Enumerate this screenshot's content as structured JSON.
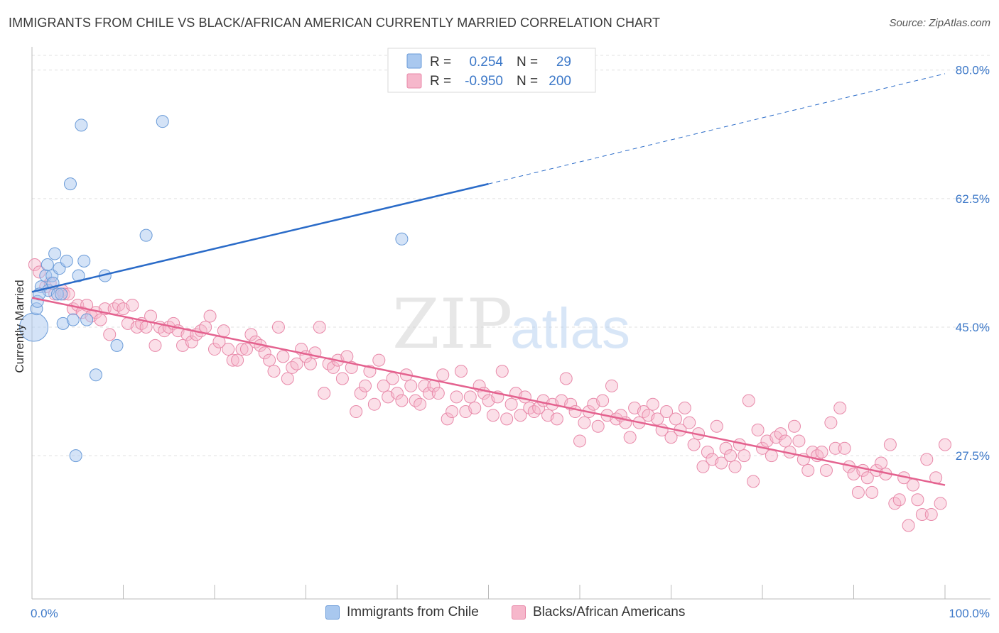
{
  "header": {
    "title": "IMMIGRANTS FROM CHILE VS BLACK/AFRICAN AMERICAN CURRENTLY MARRIED CORRELATION CHART",
    "source": "Source: ZipAtlas.com"
  },
  "watermark": {
    "zip": "ZIP",
    "atlas": "atlas"
  },
  "stats_legend": [
    {
      "r_label": "R =",
      "r_value": "0.254",
      "n_label": "N =",
      "n_value": "29"
    },
    {
      "r_label": "R =",
      "r_value": "-0.950",
      "n_label": "N =",
      "n_value": "200"
    }
  ],
  "colors": {
    "blue_fill": "#a9c8ef",
    "blue_stroke": "#6a9bd8",
    "blue_line": "#2a6bc8",
    "pink_fill": "#f6b7cb",
    "pink_stroke": "#e889a9",
    "pink_line": "#e4628f",
    "grid": "#e0e0e0",
    "tick_text": "#3c78c8"
  },
  "chart_data": {
    "type": "scatter",
    "title": "IMMIGRANTS FROM CHILE VS BLACK/AFRICAN AMERICAN CURRENTLY MARRIED CORRELATION CHART",
    "xlabel": "",
    "ylabel": "Currently Married",
    "xlim": [
      0,
      100
    ],
    "ylim": [
      8,
      82
    ],
    "x_tick_labels": [
      "0.0%",
      "100.0%"
    ],
    "y_ticks": [
      27.5,
      45.0,
      62.5,
      80.0
    ],
    "y_tick_labels": [
      "27.5%",
      "45.0%",
      "62.5%",
      "80.0%"
    ],
    "grid": true,
    "legend_position": "bottom-center",
    "series": [
      {
        "name": "Immigrants from Chile",
        "color": "#a9c8ef",
        "points": [
          [
            0.2,
            45.0
          ],
          [
            0.5,
            47.5
          ],
          [
            0.6,
            48.5
          ],
          [
            1.0,
            50.5
          ],
          [
            1.5,
            52.0
          ],
          [
            1.7,
            53.5
          ],
          [
            1.8,
            50.0
          ],
          [
            2.2,
            52.0
          ],
          [
            2.3,
            51.0
          ],
          [
            2.5,
            55.0
          ],
          [
            2.8,
            49.5
          ],
          [
            3.0,
            53.0
          ],
          [
            3.2,
            49.5
          ],
          [
            3.4,
            45.5
          ],
          [
            3.8,
            54.0
          ],
          [
            4.2,
            64.5
          ],
          [
            4.5,
            46.0
          ],
          [
            4.8,
            27.5
          ],
          [
            5.1,
            52.0
          ],
          [
            5.4,
            72.5
          ],
          [
            5.7,
            54.0
          ],
          [
            6.0,
            46.0
          ],
          [
            7.0,
            38.5
          ],
          [
            8.0,
            52.0
          ],
          [
            9.3,
            42.5
          ],
          [
            12.5,
            57.5
          ],
          [
            14.3,
            73.0
          ],
          [
            40.5,
            57.0
          ],
          [
            0.8,
            49.5
          ]
        ],
        "trend": {
          "x": [
            0,
            50
          ],
          "y": [
            49.8,
            64.5
          ],
          "dashed_to": [
            100,
            79.5
          ]
        }
      },
      {
        "name": "Blacks/African Americans",
        "color": "#f6b7cb",
        "points": [
          [
            0.3,
            53.5
          ],
          [
            0.8,
            52.5
          ],
          [
            1.5,
            50.5
          ],
          [
            2.0,
            51.0
          ],
          [
            2.5,
            49.5
          ],
          [
            3.3,
            50.0
          ],
          [
            3.5,
            49.5
          ],
          [
            4.0,
            49.5
          ],
          [
            4.5,
            47.5
          ],
          [
            5.0,
            48.0
          ],
          [
            5.5,
            47.0
          ],
          [
            6.0,
            48.0
          ],
          [
            6.5,
            46.5
          ],
          [
            7.0,
            47.0
          ],
          [
            7.5,
            46.0
          ],
          [
            8.0,
            47.5
          ],
          [
            8.5,
            44.0
          ],
          [
            9.0,
            47.5
          ],
          [
            9.5,
            48.0
          ],
          [
            10.0,
            47.5
          ],
          [
            10.5,
            45.5
          ],
          [
            11.0,
            48.0
          ],
          [
            11.5,
            45.0
          ],
          [
            12.0,
            45.5
          ],
          [
            12.5,
            45.0
          ],
          [
            13.0,
            46.5
          ],
          [
            13.5,
            42.5
          ],
          [
            14.0,
            45.0
          ],
          [
            14.5,
            44.5
          ],
          [
            15.0,
            45.0
          ],
          [
            15.5,
            45.5
          ],
          [
            16.0,
            44.5
          ],
          [
            16.5,
            42.5
          ],
          [
            17.0,
            44.0
          ],
          [
            17.5,
            43.0
          ],
          [
            18.0,
            44.0
          ],
          [
            18.5,
            44.5
          ],
          [
            19.0,
            45.0
          ],
          [
            19.5,
            46.5
          ],
          [
            20.0,
            42.0
          ],
          [
            20.5,
            43.0
          ],
          [
            21.0,
            44.5
          ],
          [
            21.5,
            42.0
          ],
          [
            22.0,
            40.5
          ],
          [
            22.5,
            40.5
          ],
          [
            23.0,
            42.0
          ],
          [
            23.5,
            42.0
          ],
          [
            24.0,
            44.0
          ],
          [
            24.5,
            43.0
          ],
          [
            25.0,
            42.5
          ],
          [
            25.5,
            41.5
          ],
          [
            26.0,
            40.5
          ],
          [
            26.5,
            39.0
          ],
          [
            27.0,
            45.0
          ],
          [
            27.5,
            41.0
          ],
          [
            28.0,
            38.0
          ],
          [
            28.5,
            39.5
          ],
          [
            29.0,
            40.0
          ],
          [
            29.5,
            42.0
          ],
          [
            30.0,
            41.0
          ],
          [
            30.5,
            40.0
          ],
          [
            31.0,
            41.5
          ],
          [
            31.5,
            45.0
          ],
          [
            32.0,
            36.0
          ],
          [
            32.5,
            40.0
          ],
          [
            33.0,
            39.5
          ],
          [
            33.5,
            40.5
          ],
          [
            34.0,
            38.0
          ],
          [
            34.5,
            41.0
          ],
          [
            35.0,
            39.5
          ],
          [
            35.5,
            33.5
          ],
          [
            36.0,
            36.0
          ],
          [
            36.5,
            37.0
          ],
          [
            37.0,
            39.0
          ],
          [
            37.5,
            34.5
          ],
          [
            38.0,
            40.5
          ],
          [
            38.5,
            37.0
          ],
          [
            39.0,
            35.5
          ],
          [
            39.5,
            38.0
          ],
          [
            40.0,
            36.0
          ],
          [
            40.5,
            35.0
          ],
          [
            41.0,
            38.5
          ],
          [
            41.5,
            37.0
          ],
          [
            42.0,
            35.0
          ],
          [
            42.5,
            34.5
          ],
          [
            43.0,
            37.0
          ],
          [
            43.5,
            36.0
          ],
          [
            44.0,
            37.0
          ],
          [
            44.5,
            36.0
          ],
          [
            45.0,
            38.5
          ],
          [
            45.5,
            32.5
          ],
          [
            46.0,
            33.5
          ],
          [
            46.5,
            35.5
          ],
          [
            47.0,
            39.0
          ],
          [
            47.5,
            33.5
          ],
          [
            48.0,
            35.5
          ],
          [
            48.5,
            34.0
          ],
          [
            49.0,
            37.0
          ],
          [
            49.5,
            36.0
          ],
          [
            50.0,
            35.0
          ],
          [
            50.5,
            33.0
          ],
          [
            51.0,
            35.5
          ],
          [
            51.5,
            39.0
          ],
          [
            52.0,
            32.5
          ],
          [
            52.5,
            34.5
          ],
          [
            53.0,
            36.0
          ],
          [
            53.5,
            33.0
          ],
          [
            54.0,
            35.5
          ],
          [
            54.5,
            34.0
          ],
          [
            55.0,
            33.5
          ],
          [
            55.5,
            34.0
          ],
          [
            56.0,
            35.0
          ],
          [
            56.5,
            33.0
          ],
          [
            57.0,
            34.5
          ],
          [
            57.5,
            32.5
          ],
          [
            58.0,
            35.0
          ],
          [
            58.5,
            38.0
          ],
          [
            59.0,
            34.5
          ],
          [
            59.5,
            33.5
          ],
          [
            60.0,
            29.5
          ],
          [
            60.5,
            32.0
          ],
          [
            61.0,
            33.5
          ],
          [
            61.5,
            34.5
          ],
          [
            62.0,
            31.5
          ],
          [
            62.5,
            35.0
          ],
          [
            63.0,
            33.0
          ],
          [
            63.5,
            37.0
          ],
          [
            64.0,
            32.5
          ],
          [
            64.5,
            33.0
          ],
          [
            65.0,
            32.0
          ],
          [
            65.5,
            30.0
          ],
          [
            66.0,
            34.0
          ],
          [
            66.5,
            32.0
          ],
          [
            67.0,
            33.5
          ],
          [
            67.5,
            33.0
          ],
          [
            68.0,
            34.5
          ],
          [
            68.5,
            32.5
          ],
          [
            69.0,
            31.0
          ],
          [
            69.5,
            33.5
          ],
          [
            70.0,
            30.0
          ],
          [
            70.5,
            32.5
          ],
          [
            71.0,
            31.0
          ],
          [
            71.5,
            34.0
          ],
          [
            72.0,
            32.0
          ],
          [
            72.5,
            29.0
          ],
          [
            73.0,
            30.5
          ],
          [
            73.5,
            26.0
          ],
          [
            74.0,
            28.0
          ],
          [
            74.5,
            27.0
          ],
          [
            75.0,
            31.5
          ],
          [
            75.5,
            26.5
          ],
          [
            76.0,
            28.5
          ],
          [
            76.5,
            27.5
          ],
          [
            77.0,
            26.0
          ],
          [
            77.5,
            29.0
          ],
          [
            78.0,
            27.5
          ],
          [
            78.5,
            35.0
          ],
          [
            79.0,
            24.0
          ],
          [
            79.5,
            31.0
          ],
          [
            80.0,
            28.5
          ],
          [
            80.5,
            29.5
          ],
          [
            81.0,
            27.5
          ],
          [
            81.5,
            30.0
          ],
          [
            82.0,
            30.5
          ],
          [
            82.5,
            29.5
          ],
          [
            83.0,
            28.0
          ],
          [
            83.5,
            31.5
          ],
          [
            84.0,
            29.5
          ],
          [
            84.5,
            27.0
          ],
          [
            85.0,
            25.5
          ],
          [
            85.5,
            28.0
          ],
          [
            86.0,
            27.5
          ],
          [
            86.5,
            28.0
          ],
          [
            87.0,
            25.5
          ],
          [
            87.5,
            32.0
          ],
          [
            88.0,
            28.5
          ],
          [
            88.5,
            34.0
          ],
          [
            89.0,
            28.5
          ],
          [
            89.5,
            26.0
          ],
          [
            90.0,
            25.0
          ],
          [
            90.5,
            22.5
          ],
          [
            91.0,
            25.5
          ],
          [
            91.5,
            24.5
          ],
          [
            92.0,
            22.5
          ],
          [
            92.5,
            25.5
          ],
          [
            93.0,
            26.5
          ],
          [
            93.5,
            25.0
          ],
          [
            94.0,
            29.0
          ],
          [
            94.5,
            21.0
          ],
          [
            95.0,
            21.5
          ],
          [
            95.5,
            24.5
          ],
          [
            96.0,
            18.0
          ],
          [
            96.5,
            23.5
          ],
          [
            97.0,
            21.5
          ],
          [
            97.5,
            19.5
          ],
          [
            98.0,
            27.0
          ],
          [
            98.5,
            19.5
          ],
          [
            99.0,
            24.5
          ],
          [
            99.5,
            21.0
          ],
          [
            100.0,
            29.0
          ]
        ],
        "trend": {
          "x": [
            0,
            100
          ],
          "y": [
            49.0,
            23.5
          ]
        }
      }
    ]
  }
}
